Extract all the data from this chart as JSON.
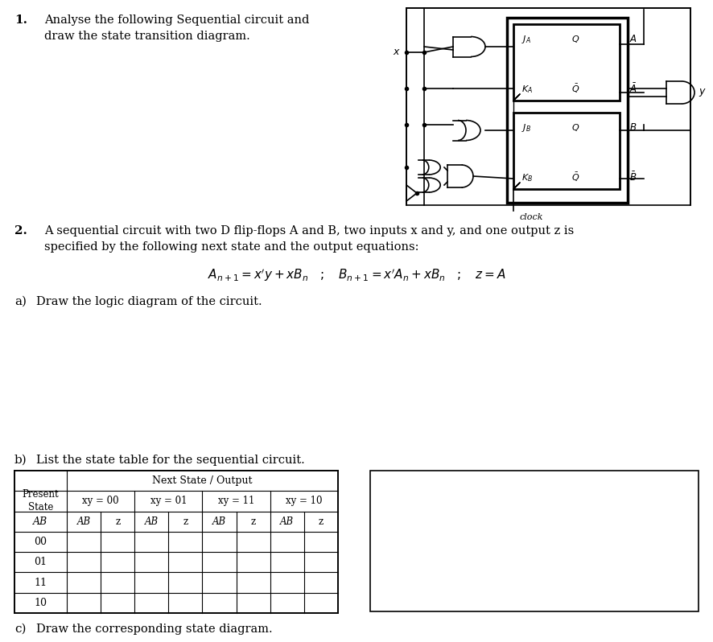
{
  "bg_color": "#ffffff",
  "text_color": "#000000",
  "font": "DejaVu Serif",
  "s1_num": "1.",
  "s1_l1": "Analyse the following Sequential circuit and",
  "s1_l2": "draw the state transition diagram.",
  "s2_num": "2.",
  "s2_l1": "A sequential circuit with two D flip-flops A and B, two inputs x and y, and one output z is",
  "s2_l2": "specified by the following next state and the output equations:",
  "sa_label": "a)",
  "sa_text": "Draw the logic diagram of the circuit.",
  "sb_label": "b)",
  "sb_text": "List the state table for the sequential circuit.",
  "sc_label": "c)",
  "sc_text": "Draw the corresponding state diagram.",
  "table_header": "Next State / Output",
  "table_col_headers": [
    "xy = 00",
    "xy = 01",
    "xy = 11",
    "xy = 10"
  ],
  "table_rows": [
    "00",
    "01",
    "11",
    "10"
  ],
  "clock_label": "clock"
}
